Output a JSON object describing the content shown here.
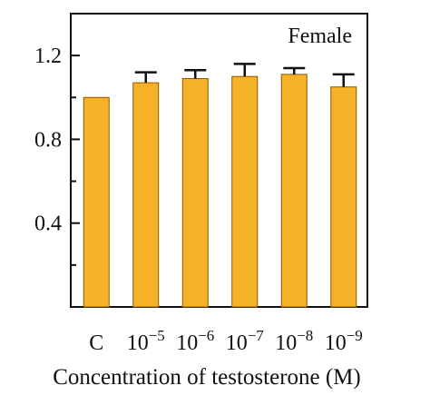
{
  "chart_data": {
    "type": "bar",
    "title": "",
    "annotation": "Female",
    "xlabel": "Concentration of testosterone (M)",
    "ylabel": "",
    "ylim": [
      0,
      1.4
    ],
    "yticks": [
      {
        "value": 0.4,
        "label": "0.4"
      },
      {
        "value": 0.8,
        "label": "0.8"
      },
      {
        "value": 1.2,
        "label": "1.2"
      }
    ],
    "minor_yticks": [
      0.2,
      0.6,
      1.0,
      1.4
    ],
    "categories": [
      {
        "base": "C",
        "exp": ""
      },
      {
        "base": "10",
        "exp": "−5"
      },
      {
        "base": "10",
        "exp": "−6"
      },
      {
        "base": "10",
        "exp": "−7"
      },
      {
        "base": "10",
        "exp": "−8"
      },
      {
        "base": "10",
        "exp": "−9"
      }
    ],
    "values": [
      1.0,
      1.07,
      1.09,
      1.1,
      1.11,
      1.05
    ],
    "errors": [
      0.0,
      0.05,
      0.04,
      0.06,
      0.03,
      0.06
    ],
    "bar_color": "#F5B229",
    "bar_edge_color": "#8A5A00",
    "grid": false,
    "legend": "none"
  }
}
